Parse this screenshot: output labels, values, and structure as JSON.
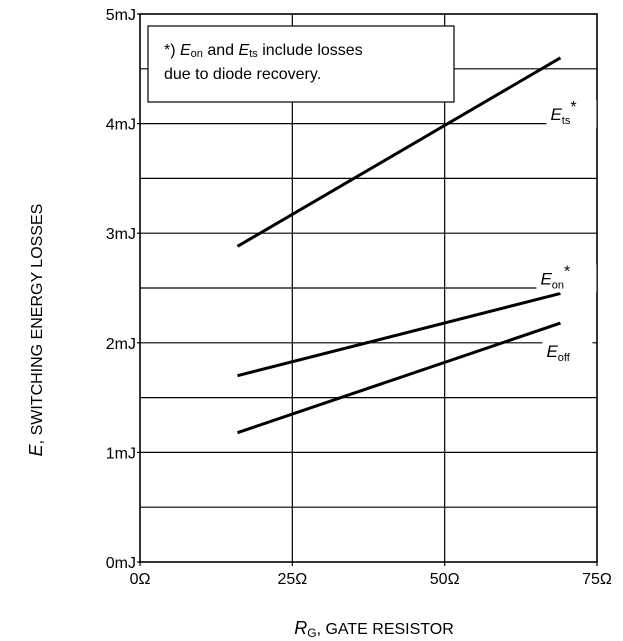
{
  "chart_data": {
    "type": "line",
    "note": {
      "line1_prefix": "*) ",
      "e1_main": "E",
      "e1_sub": "on",
      "and": " and ",
      "e2_main": "E",
      "e2_sub": "ts",
      "line1_suffix": " include losses",
      "line2": "due to diode recovery."
    },
    "xlabel": {
      "main": "R",
      "sub": "G",
      "rest": ", GATE RESISTOR"
    },
    "ylabel": {
      "main": "E",
      "rest": ", SWITCHING ENERGY LOSSES"
    },
    "xlim": [
      0,
      75
    ],
    "ylim": [
      0,
      5
    ],
    "x_ticks": [
      {
        "value": 0,
        "label": "0Ω"
      },
      {
        "value": 25,
        "label": "25Ω"
      },
      {
        "value": 50,
        "label": "50Ω"
      },
      {
        "value": 75,
        "label": "75Ω"
      }
    ],
    "y_ticks": [
      {
        "value": 0,
        "label": "0mJ"
      },
      {
        "value": 1,
        "label": "1mJ"
      },
      {
        "value": 2,
        "label": "2mJ"
      },
      {
        "value": 3,
        "label": "3mJ"
      },
      {
        "value": 4,
        "label": "4mJ"
      },
      {
        "value": 5,
        "label": "5mJ"
      }
    ],
    "grid": {
      "x_step": 25,
      "y_step": 0.5
    },
    "series": [
      {
        "name_main": "E",
        "name_sub": "ts",
        "name_suffix": "*",
        "x": [
          16,
          69
        ],
        "y": [
          2.88,
          4.6
        ]
      },
      {
        "name_main": "E",
        "name_sub": "on",
        "name_suffix": "*",
        "x": [
          16,
          69
        ],
        "y": [
          1.7,
          2.45
        ]
      },
      {
        "name_main": "E",
        "name_sub": "off",
        "name_suffix": "",
        "x": [
          16,
          69
        ],
        "y": [
          1.18,
          2.18
        ]
      }
    ]
  }
}
